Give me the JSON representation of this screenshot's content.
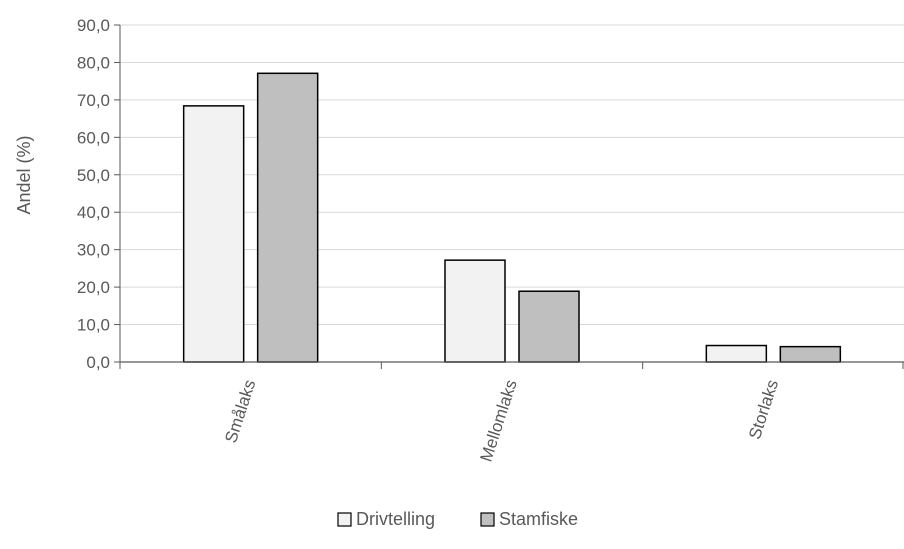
{
  "chart_data": {
    "type": "bar",
    "title": "",
    "xlabel": "",
    "ylabel": "Andel (%)",
    "ylim": [
      0,
      90
    ],
    "yticks": [
      "0,0",
      "10,0",
      "20,0",
      "30,0",
      "40,0",
      "50,0",
      "60,0",
      "70,0",
      "80,0",
      "90,0"
    ],
    "categories": [
      "Smålaks",
      "Mellomlaks",
      "Storlaks"
    ],
    "series": [
      {
        "name": "Drivtelling",
        "values": [
          68.4,
          27.2,
          4.4
        ],
        "color": "#f2f2f2"
      },
      {
        "name": "Stamfiske",
        "values": [
          77.1,
          18.9,
          4.1
        ],
        "color": "#bfbfbf"
      }
    ],
    "grid": true,
    "legend": "bottom"
  }
}
